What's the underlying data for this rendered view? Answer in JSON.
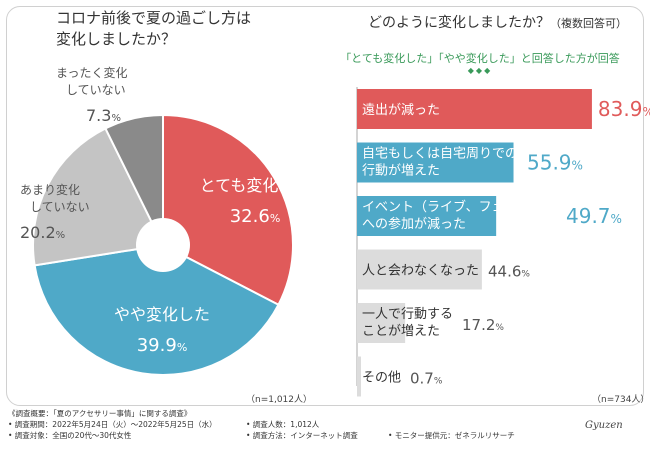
{
  "left_title_line1": "コロナ前後で夏の過ごし方は",
  "left_title_line2": "変化しましたか？",
  "right_title_main": "どのように変化しましたか？",
  "right_title_note": "（複数回答可）",
  "right_subhead": "「とても変化した」「やや変化した」と回答した方が回答",
  "right_dots": "◆◆◆",
  "n_left": "（n=1,012人）",
  "n_right": "（n=734人）",
  "footer": {
    "line1": "《調査概要：「夏のアクセサリー事情」に関する調査》",
    "line2": "• 調査期間：2022年5月24日（火）～2022年5月25日（水）",
    "line3": "• 調査対象：全国の20代～30代女性",
    "people": "• 調査人数：1,012人",
    "method": "• 調査方法：インターネット調査",
    "provider": "• モニター提供元：ゼネラルリサーチ",
    "logo": "Gyuzen"
  },
  "colors": {
    "red": "#e05a5a",
    "blue": "#4fa9c8",
    "lightgray": "#c4c4c4",
    "darkgray": "#8a8a8a",
    "barbg": "#dcdcdc"
  },
  "chart_data": [
    {
      "type": "pie",
      "slices": [
        {
          "label": "とても変化した",
          "value": 32.6,
          "color": "#e05a5a"
        },
        {
          "label": "やや変化した",
          "value": 39.9,
          "color": "#4fa9c8"
        },
        {
          "label": "あまり変化していない",
          "label_lines": [
            "あまり変化",
            "していない"
          ],
          "value": 20.2,
          "color": "#c4c4c4"
        },
        {
          "label": "まったく変化していない",
          "label_lines": [
            "まったく変化",
            "していない"
          ],
          "value": 7.3,
          "color": "#8a8a8a"
        }
      ],
      "unit": "%"
    },
    {
      "type": "bar",
      "orientation": "horizontal",
      "categories": [
        {
          "lines": [
            "遠出が減った"
          ],
          "value": 83.9,
          "color": "#e05a5a"
        },
        {
          "lines": [
            "自宅もしくは自宅周りでの",
            "行動が増えた"
          ],
          "value": 55.9,
          "color": "#4fa9c8"
        },
        {
          "lines": [
            "イベント（ライブ、フェスなど）",
            "への参加が減った"
          ],
          "value": 49.7,
          "color": "#4fa9c8"
        },
        {
          "lines": [
            "人と会わなくなった"
          ],
          "value": 44.6,
          "color": "#dcdcdc"
        },
        {
          "lines": [
            "一人で行動する",
            "ことが増えた"
          ],
          "value": 17.2,
          "color": "#dcdcdc"
        },
        {
          "lines": [
            "その他"
          ],
          "value": 0.7,
          "color": "#dcdcdc"
        }
      ],
      "unit": "%",
      "xlim": [
        0,
        100
      ]
    }
  ]
}
